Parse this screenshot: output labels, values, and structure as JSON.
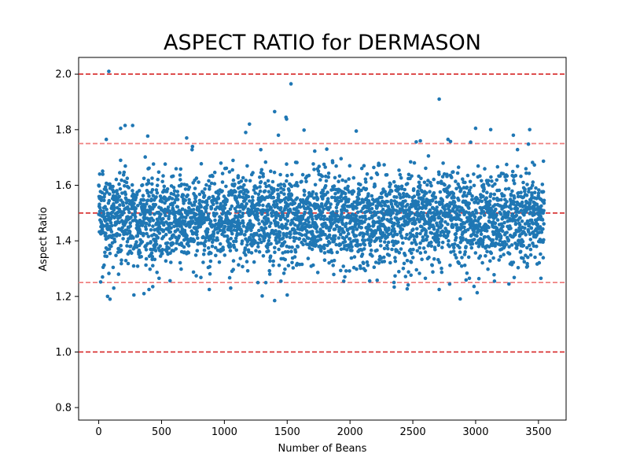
{
  "chart_data": {
    "type": "scatter",
    "title": "ASPECT RATIO for DERMASON",
    "xlabel": "Number of Beans",
    "ylabel": "Aspect Ratio",
    "xlim": [
      -160,
      3720
    ],
    "ylim": [
      0.755,
      2.06
    ],
    "xticks": [
      0,
      500,
      1000,
      1500,
      2000,
      2500,
      3000,
      3500
    ],
    "yticks": [
      0.8,
      1.0,
      1.2,
      1.4,
      1.6,
      1.8,
      2.0
    ],
    "grid": false,
    "point_color": "#1f77b4",
    "n_points": 3546,
    "point_density_profile": {
      "mean": 1.48,
      "std": 0.085,
      "range": [
        1.19,
        2.01
      ],
      "core_band": [
        1.3,
        1.7
      ]
    },
    "series": [
      {
        "points_sample_outliers": [
          [
            80,
            2.01
          ],
          [
            1530,
            1.965
          ],
          [
            2710,
            1.91
          ],
          [
            1400,
            1.865
          ],
          [
            1490,
            1.845
          ],
          [
            1495,
            1.838
          ],
          [
            270,
            1.815
          ],
          [
            210,
            1.815
          ],
          [
            1200,
            1.82
          ],
          [
            3000,
            1.805
          ],
          [
            2050,
            1.795
          ],
          [
            3430,
            1.8
          ],
          [
            3120,
            1.8
          ],
          [
            175,
            1.805
          ],
          [
            700,
            1.77
          ],
          [
            2780,
            1.765
          ],
          [
            2560,
            1.76
          ],
          [
            1430,
            1.78
          ],
          [
            1170,
            1.79
          ],
          [
            3300,
            1.78
          ],
          [
            2960,
            1.755
          ],
          [
            60,
            1.765
          ],
          [
            90,
            1.19
          ],
          [
            1400,
            1.185
          ],
          [
            1500,
            1.205
          ],
          [
            280,
            1.205
          ],
          [
            70,
            1.2
          ],
          [
            360,
            1.21
          ],
          [
            2710,
            1.225
          ],
          [
            880,
            1.225
          ],
          [
            120,
            1.23
          ],
          [
            1050,
            1.23
          ],
          [
            400,
            1.225
          ],
          [
            430,
            1.235
          ],
          [
            2350,
            1.25
          ],
          [
            3150,
            1.255
          ],
          [
            1950,
            1.255
          ],
          [
            1450,
            1.255
          ],
          [
            3520,
            1.265
          ],
          [
            2950,
            1.265
          ],
          [
            2600,
            1.265
          ],
          [
            480,
            1.265
          ],
          [
            30,
            1.27
          ]
        ]
      }
    ],
    "reference_lines": [
      {
        "y": 2.0,
        "color": "#d62728",
        "style": "dashed"
      },
      {
        "y": 1.75,
        "color": "#f08080",
        "style": "dashed"
      },
      {
        "y": 1.5,
        "color": "#d62728",
        "style": "dashed"
      },
      {
        "y": 1.25,
        "color": "#f08080",
        "style": "dashed"
      },
      {
        "y": 1.0,
        "color": "#d62728",
        "style": "dashed"
      }
    ]
  }
}
